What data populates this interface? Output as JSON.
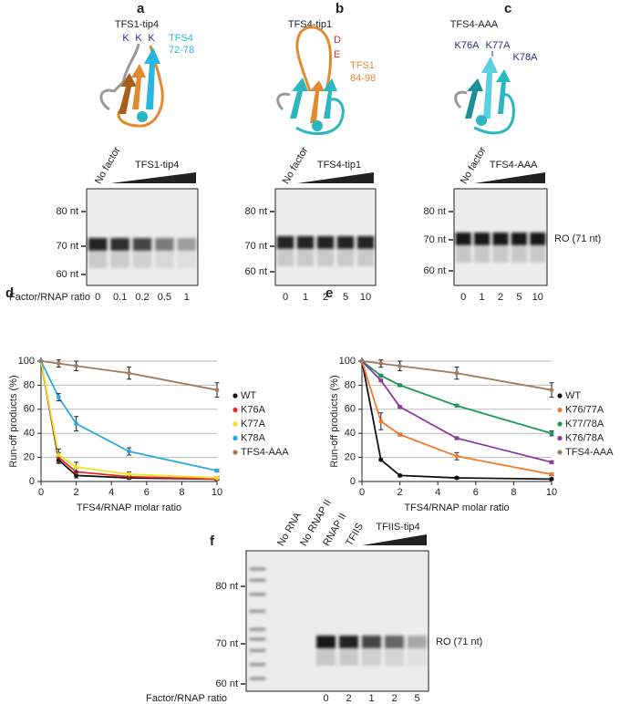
{
  "panel_labels": {
    "a": "a",
    "b": "b",
    "c": "c",
    "d": "d",
    "e": "e",
    "f": "f"
  },
  "panel_a": {
    "title": "TFS1-tip4",
    "structure_labels": [
      "K",
      "K",
      "K",
      "TFS4",
      "72-78"
    ],
    "gel": {
      "lane_labels": [
        "No factor"
      ],
      "titration_label": "TFS1-tip4",
      "markers": [
        "80 nt",
        "70 nt",
        "60 nt"
      ],
      "ratio_label": "Factor/RNAP ratio",
      "ratios": [
        "0",
        "0.1",
        "0.2",
        "0.5",
        "1"
      ]
    }
  },
  "panel_b": {
    "title": "TFS4-tip1",
    "structure_labels": [
      "D",
      "E",
      "TFS1",
      "84-98"
    ],
    "gel": {
      "lane_labels": [
        "No factor"
      ],
      "titration_label": "TFS4-tip1",
      "markers": [
        "80 nt",
        "70 nt",
        "60 nt"
      ],
      "ratios": [
        "0",
        "1",
        "2",
        "5",
        "10"
      ]
    }
  },
  "panel_c": {
    "title": "TFS4-AAA",
    "structure_labels": [
      "K76A",
      "K77A",
      "K78A"
    ],
    "gel": {
      "lane_labels": [
        "No factor"
      ],
      "titration_label": "TFS4-AAA",
      "markers": [
        "80 nt",
        "70 nt",
        "60 nt"
      ],
      "ratios": [
        "0",
        "1",
        "2",
        "5",
        "10"
      ],
      "band_label": "RO (71 nt)"
    }
  },
  "panel_f": {
    "gel": {
      "lane_labels": [
        "No RNA",
        "No RNAP II",
        "RNAP II",
        "TFIIS"
      ],
      "titration_label": "TFIIS-tip4",
      "markers": [
        "80 nt",
        "70 nt",
        "60 nt"
      ],
      "band_label": "RO (71 nt)",
      "ratio_label": "Factor/RNAP ratio",
      "ratios": [
        "0",
        "2",
        "1",
        "2",
        "5"
      ]
    }
  },
  "chart_data": [
    {
      "type": "line",
      "xlabel": "TFS4/RNAP molar ratio",
      "ylabel": "Run-off products (%)",
      "x": [
        0,
        1,
        2,
        5,
        10
      ],
      "xlim": [
        0,
        10
      ],
      "xticks": [
        0,
        2,
        4,
        6,
        8,
        10
      ],
      "ylim": [
        0,
        100
      ],
      "yticks": [
        0,
        20,
        40,
        60,
        80,
        100
      ],
      "grid": true,
      "legend": "right",
      "series": [
        {
          "name": "WT",
          "color": "#111111",
          "values": [
            100,
            18,
            5,
            3,
            2
          ],
          "errors": [
            0,
            3,
            2,
            1,
            1
          ]
        },
        {
          "name": "K76A",
          "color": "#e8262a",
          "values": [
            100,
            20,
            8,
            4,
            2
          ],
          "errors": [
            0,
            4,
            3,
            1,
            1
          ]
        },
        {
          "name": "K77A",
          "color": "#f2e11d",
          "values": [
            100,
            22,
            12,
            6,
            3
          ],
          "errors": [
            0,
            5,
            4,
            2,
            1
          ]
        },
        {
          "name": "K78A",
          "color": "#27a9e1",
          "values": [
            100,
            70,
            48,
            25,
            9
          ],
          "errors": [
            0,
            3,
            6,
            3,
            1
          ]
        },
        {
          "name": "TFS4-AAA",
          "color": "#a57c5b",
          "values": [
            100,
            98,
            96,
            90,
            76
          ],
          "errors": [
            0,
            3,
            4,
            5,
            6
          ]
        }
      ]
    },
    {
      "type": "line",
      "xlabel": "TFS4/RNAP molar ratio",
      "ylabel": "Run-off products (%)",
      "x": [
        0,
        1,
        2,
        5,
        10
      ],
      "xlim": [
        0,
        10
      ],
      "xticks": [
        0,
        2,
        4,
        6,
        8,
        10
      ],
      "ylim": [
        0,
        100
      ],
      "yticks": [
        0,
        20,
        40,
        60,
        80,
        100
      ],
      "grid": true,
      "legend": "right",
      "series": [
        {
          "name": "WT",
          "color": "#111111",
          "values": [
            100,
            18,
            5,
            3,
            2
          ],
          "errors": [
            0,
            1,
            1,
            1,
            1
          ]
        },
        {
          "name": "K76/77A",
          "color": "#f07b2a",
          "values": [
            100,
            50,
            39,
            21,
            6
          ],
          "errors": [
            0,
            7,
            1,
            3,
            1
          ]
        },
        {
          "name": "K77/78A",
          "color": "#1a9a5a",
          "values": [
            100,
            88,
            80,
            63,
            40
          ],
          "errors": [
            0,
            1,
            1,
            1,
            2
          ]
        },
        {
          "name": "K76/78A",
          "color": "#8e3aa0",
          "values": [
            100,
            84,
            62,
            36,
            16
          ],
          "errors": [
            0,
            1,
            1,
            1,
            1
          ]
        },
        {
          "name": "TFS4-AAA",
          "color": "#a57c5b",
          "values": [
            100,
            98,
            96,
            90,
            76
          ],
          "errors": [
            0,
            3,
            4,
            5,
            6
          ]
        }
      ]
    }
  ]
}
